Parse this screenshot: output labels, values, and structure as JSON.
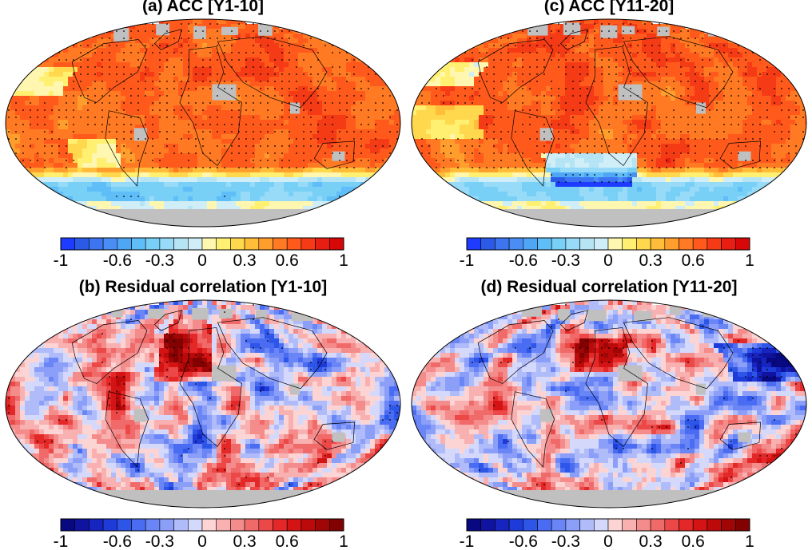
{
  "panels": [
    {
      "id": "a",
      "title": "(a) ACC [Y1-10]",
      "scheme": "acc",
      "pattern": "acc1"
    },
    {
      "id": "c",
      "title": "(c) ACC [Y11-20]",
      "scheme": "acc",
      "pattern": "acc2"
    },
    {
      "id": "b",
      "title": "(b) Residual correlation [Y1-10]",
      "scheme": "res",
      "pattern": "res1"
    },
    {
      "id": "d",
      "title": "(d) Residual correlation [Y11-20]",
      "scheme": "res",
      "pattern": "res2"
    }
  ],
  "colorbar": {
    "tick_labels": [
      "-1",
      "-0.6",
      "-0.3",
      "0",
      "0.3",
      "0.6",
      "1"
    ],
    "tick_values": [
      -1,
      -0.6,
      -0.3,
      0,
      0.3,
      0.6,
      1
    ],
    "range": [
      -1,
      1
    ],
    "levels": 20
  },
  "colors": {
    "acc_scheme": [
      "#1e3cff",
      "#2b5ae6",
      "#3d74f0",
      "#4a8ef5",
      "#4fa6f5",
      "#5fbdf7",
      "#78d0f7",
      "#98dbf8",
      "#b5e4f5",
      "#cfeef7",
      "#fff7b0",
      "#fff071",
      "#ffd84d",
      "#ffbd3a",
      "#ff9e2c",
      "#ff7a22",
      "#ff5a1c",
      "#f53a16",
      "#e81e12",
      "#d90808"
    ],
    "res_scheme": [
      "#080880",
      "#10139f",
      "#1725c0",
      "#1e3ad8",
      "#2d55e8",
      "#4a6cf2",
      "#6a86f6",
      "#8c9ff8",
      "#b0bbfa",
      "#d4d9fc",
      "#fcd4d4",
      "#f8b0b0",
      "#f48c8c",
      "#f06a6a",
      "#ec4848",
      "#e42828",
      "#d41414",
      "#bc0a0a",
      "#a00606",
      "#820202"
    ],
    "land": "#c0c0c0",
    "coast": "#000000"
  },
  "chart_data": [
    {
      "type": "heatmap",
      "title": "(a) ACC [Y1-10]",
      "colorbar_ticks": [
        "-1",
        "-0.6",
        "-0.3",
        "0",
        "0.3",
        "0.6",
        "1"
      ],
      "range": [
        -1,
        1
      ],
      "description_values": "global map field of anomaly correlation; mostly 0.6 to 1, negative near Southern Ocean"
    },
    {
      "type": "heatmap",
      "title": "(c) ACC [Y11-20]",
      "colorbar_ticks": [
        "-1",
        "-0.6",
        "-0.3",
        "0",
        "0.3",
        "0.6",
        "1"
      ],
      "range": [
        -1,
        1
      ],
      "description_values": "global map field; mostly 0.6 to 1, negative band around Southern Ocean"
    },
    {
      "type": "heatmap",
      "title": "(b) Residual correlation [Y1-10]",
      "colorbar_ticks": [
        "-1",
        "-0.6",
        "-0.3",
        "0",
        "0.3",
        "0.6",
        "1"
      ],
      "range": [
        -1,
        1
      ],
      "description_values": "global map field; positive in North Atlantic, mixed elsewhere"
    },
    {
      "type": "heatmap",
      "title": "(d) Residual correlation [Y11-20]",
      "colorbar_ticks": [
        "-1",
        "-0.6",
        "-0.3",
        "0",
        "0.3",
        "0.6",
        "1"
      ],
      "range": [
        -1,
        1
      ],
      "description_values": "global map field; mixed positive and negative"
    }
  ]
}
